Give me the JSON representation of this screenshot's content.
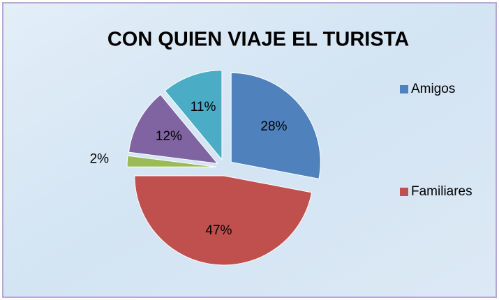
{
  "chart_data": {
    "type": "pie",
    "title": "CON QUIEN VIAJE EL TURISTA",
    "categories": [
      "Amigos",
      "Familiares",
      null,
      null,
      null
    ],
    "values": [
      28,
      47,
      2,
      12,
      11
    ],
    "value_labels": [
      "28%",
      "47%",
      "2%",
      "12%",
      "11%"
    ],
    "colors": [
      "#4f81bd",
      "#c0504d",
      "#9bbb59",
      "#8064a2",
      "#4bacc6"
    ],
    "legend": "right"
  }
}
